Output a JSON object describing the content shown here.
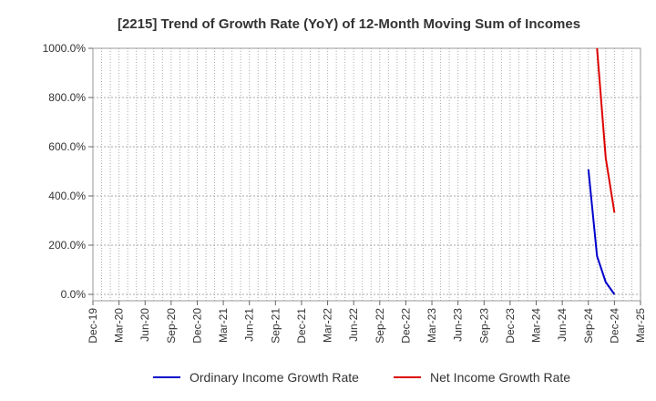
{
  "chart_data": {
    "type": "line",
    "title": "[2215]  Trend of Growth Rate (YoY) of 12-Month Moving Sum of Incomes",
    "xlabel": "",
    "ylabel": "",
    "ylim": [
      0,
      1000
    ],
    "y_ticks": [
      0,
      200,
      400,
      600,
      800,
      1000
    ],
    "y_tick_labels": [
      "0.0%",
      "200.0%",
      "400.0%",
      "600.0%",
      "800.0%",
      "1000.0%"
    ],
    "x_tick_labels": [
      "Dec-19",
      "Mar-20",
      "Jun-20",
      "Sep-20",
      "Dec-20",
      "Mar-21",
      "Jun-21",
      "Sep-21",
      "Dec-21",
      "Mar-22",
      "Jun-22",
      "Sep-22",
      "Dec-22",
      "Mar-23",
      "Jun-23",
      "Sep-23",
      "Dec-23",
      "Mar-24",
      "Jun-24",
      "Sep-24",
      "Dec-24",
      "Mar-25"
    ],
    "grid": true,
    "legend_position": "bottom",
    "series": [
      {
        "name": "Ordinary Income Growth Rate",
        "color": "#0000cc",
        "points": [
          {
            "x": "Sep-24",
            "y": 508
          },
          {
            "x": "Oct-24",
            "y": 155
          },
          {
            "x": "Nov-24",
            "y": 50
          },
          {
            "x": "Dec-24",
            "y": 0
          }
        ]
      },
      {
        "name": "Net Income Growth Rate",
        "color": "#dd0000",
        "points": [
          {
            "x": "Oct-24",
            "y": 1000
          },
          {
            "x": "Nov-24",
            "y": 555
          },
          {
            "x": "Dec-24",
            "y": 332
          }
        ]
      }
    ]
  }
}
